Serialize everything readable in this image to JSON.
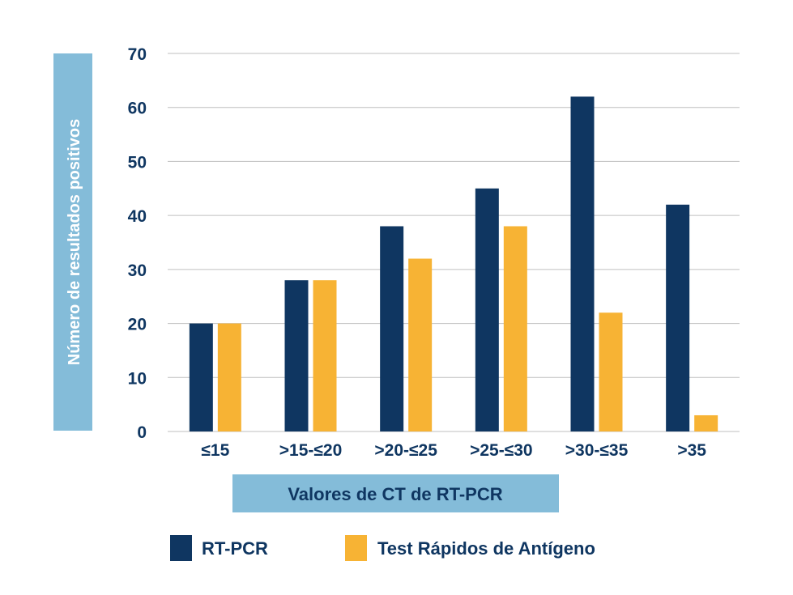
{
  "chart_data": {
    "type": "bar",
    "title": "",
    "xlabel": "Valores de CT de RT-PCR",
    "ylabel": "Número de resultados positivos",
    "ylim": [
      0,
      70
    ],
    "yticks": [
      0,
      10,
      20,
      30,
      40,
      50,
      60,
      70
    ],
    "categories": [
      "≤15",
      ">15-≤20",
      ">20-≤25",
      ">25-≤30",
      ">30-≤35",
      ">35"
    ],
    "series": [
      {
        "name": "RT-PCR",
        "color": "#0f3661",
        "values": [
          20,
          28,
          38,
          45,
          62,
          42
        ]
      },
      {
        "name": "Test Rápidos de Antígeno",
        "color": "#f7b334",
        "values": [
          20,
          28,
          32,
          38,
          22,
          3
        ]
      }
    ],
    "grid": true,
    "legend_position": "bottom"
  },
  "colors": {
    "label_box": "#84bcd9",
    "grid": "#bfbfbf",
    "text": "#0f3661"
  }
}
